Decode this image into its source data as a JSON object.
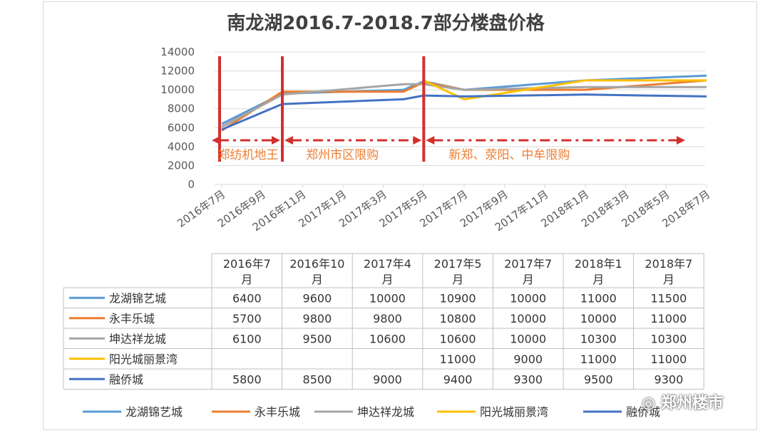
{
  "chart_data": {
    "type": "line",
    "title": "南龙湖2016.7-2018.7部分楼盘价格",
    "y_ticks": [
      "0",
      "2000",
      "4000",
      "6000",
      "8000",
      "10000",
      "12000",
      "14000"
    ],
    "ylim": [
      0,
      14000
    ],
    "categories": [
      "2016年7月",
      "2016年9月",
      "2016年11月",
      "2017年1月",
      "2017年3月",
      "2017年5月",
      "2017年7月",
      "2017年9月",
      "2017年11月",
      "2018年1月",
      "2018年3月",
      "2018年5月",
      "2018年7月"
    ],
    "x_month_index": [
      0,
      2,
      4,
      6,
      8,
      10,
      12,
      14,
      16,
      18,
      20,
      22,
      24
    ],
    "series": [
      {
        "name": "龙湖锦艺城",
        "color": "#5B9BD5",
        "points": [
          [
            0,
            6400
          ],
          [
            3,
            9600
          ],
          [
            9,
            10000
          ],
          [
            10,
            10900
          ],
          [
            12,
            10000
          ],
          [
            18,
            11000
          ],
          [
            24,
            11500
          ]
        ]
      },
      {
        "name": "永丰乐城",
        "color": "#ED7D31",
        "points": [
          [
            0,
            5700
          ],
          [
            3,
            9800
          ],
          [
            9,
            9800
          ],
          [
            10,
            10800
          ],
          [
            12,
            10000
          ],
          [
            18,
            10000
          ],
          [
            24,
            11000
          ]
        ]
      },
      {
        "name": "坤达祥龙城",
        "color": "#A5A5A5",
        "points": [
          [
            0,
            6100
          ],
          [
            3,
            9500
          ],
          [
            9,
            10600
          ],
          [
            10,
            10600
          ],
          [
            12,
            10000
          ],
          [
            18,
            10300
          ],
          [
            24,
            10300
          ]
        ]
      },
      {
        "name": "阳光城丽景湾",
        "color": "#FFC000",
        "points": [
          [
            10,
            11000
          ],
          [
            12,
            9000
          ],
          [
            18,
            11000
          ],
          [
            24,
            11000
          ]
        ]
      },
      {
        "name": "融侨城",
        "color": "#4472C4",
        "points": [
          [
            0,
            5800
          ],
          [
            3,
            8500
          ],
          [
            9,
            9000
          ],
          [
            10,
            9400
          ],
          [
            12,
            9300
          ],
          [
            18,
            9500
          ],
          [
            24,
            9300
          ]
        ]
      }
    ],
    "annotations": [
      {
        "text": "郑纺机地王",
        "marker_month": 0
      },
      {
        "text": "郑州市区限购",
        "marker_month": 3
      },
      {
        "text": "新郑、荥阳、中牟限购",
        "marker_month": 10
      }
    ],
    "legend_position": "bottom",
    "grid": true
  },
  "table": {
    "headers": [
      [
        "2016年7",
        "月"
      ],
      [
        "2016年10",
        "月"
      ],
      [
        "2017年4",
        "月"
      ],
      [
        "2017年5",
        "月"
      ],
      [
        "2017年7",
        "月"
      ],
      [
        "2018年1",
        "月"
      ],
      [
        "2018年7",
        "月"
      ]
    ],
    "rows": [
      {
        "name": "龙湖锦艺城",
        "color": "#5B9BD5",
        "values": [
          "6400",
          "9600",
          "10000",
          "10900",
          "10000",
          "11000",
          "11500"
        ]
      },
      {
        "name": "永丰乐城",
        "color": "#ED7D31",
        "values": [
          "5700",
          "9800",
          "9800",
          "10800",
          "10000",
          "10000",
          "11000"
        ]
      },
      {
        "name": "坤达祥龙城",
        "color": "#A5A5A5",
        "values": [
          "6100",
          "9500",
          "10600",
          "10600",
          "10000",
          "10300",
          "10300"
        ]
      },
      {
        "name": "阳光城丽景湾",
        "color": "#FFC000",
        "values": [
          "",
          "",
          "",
          "11000",
          "9000",
          "11000",
          "11000"
        ]
      },
      {
        "name": "融侨城",
        "color": "#4472C4",
        "values": [
          "5800",
          "8500",
          "9000",
          "9400",
          "9300",
          "9500",
          "9300"
        ]
      }
    ]
  },
  "watermark": "郑州楼市",
  "colors": {
    "marker": "#D32F2F",
    "annotation_text": "#ED7D31",
    "grid": "#D9D9D9"
  }
}
